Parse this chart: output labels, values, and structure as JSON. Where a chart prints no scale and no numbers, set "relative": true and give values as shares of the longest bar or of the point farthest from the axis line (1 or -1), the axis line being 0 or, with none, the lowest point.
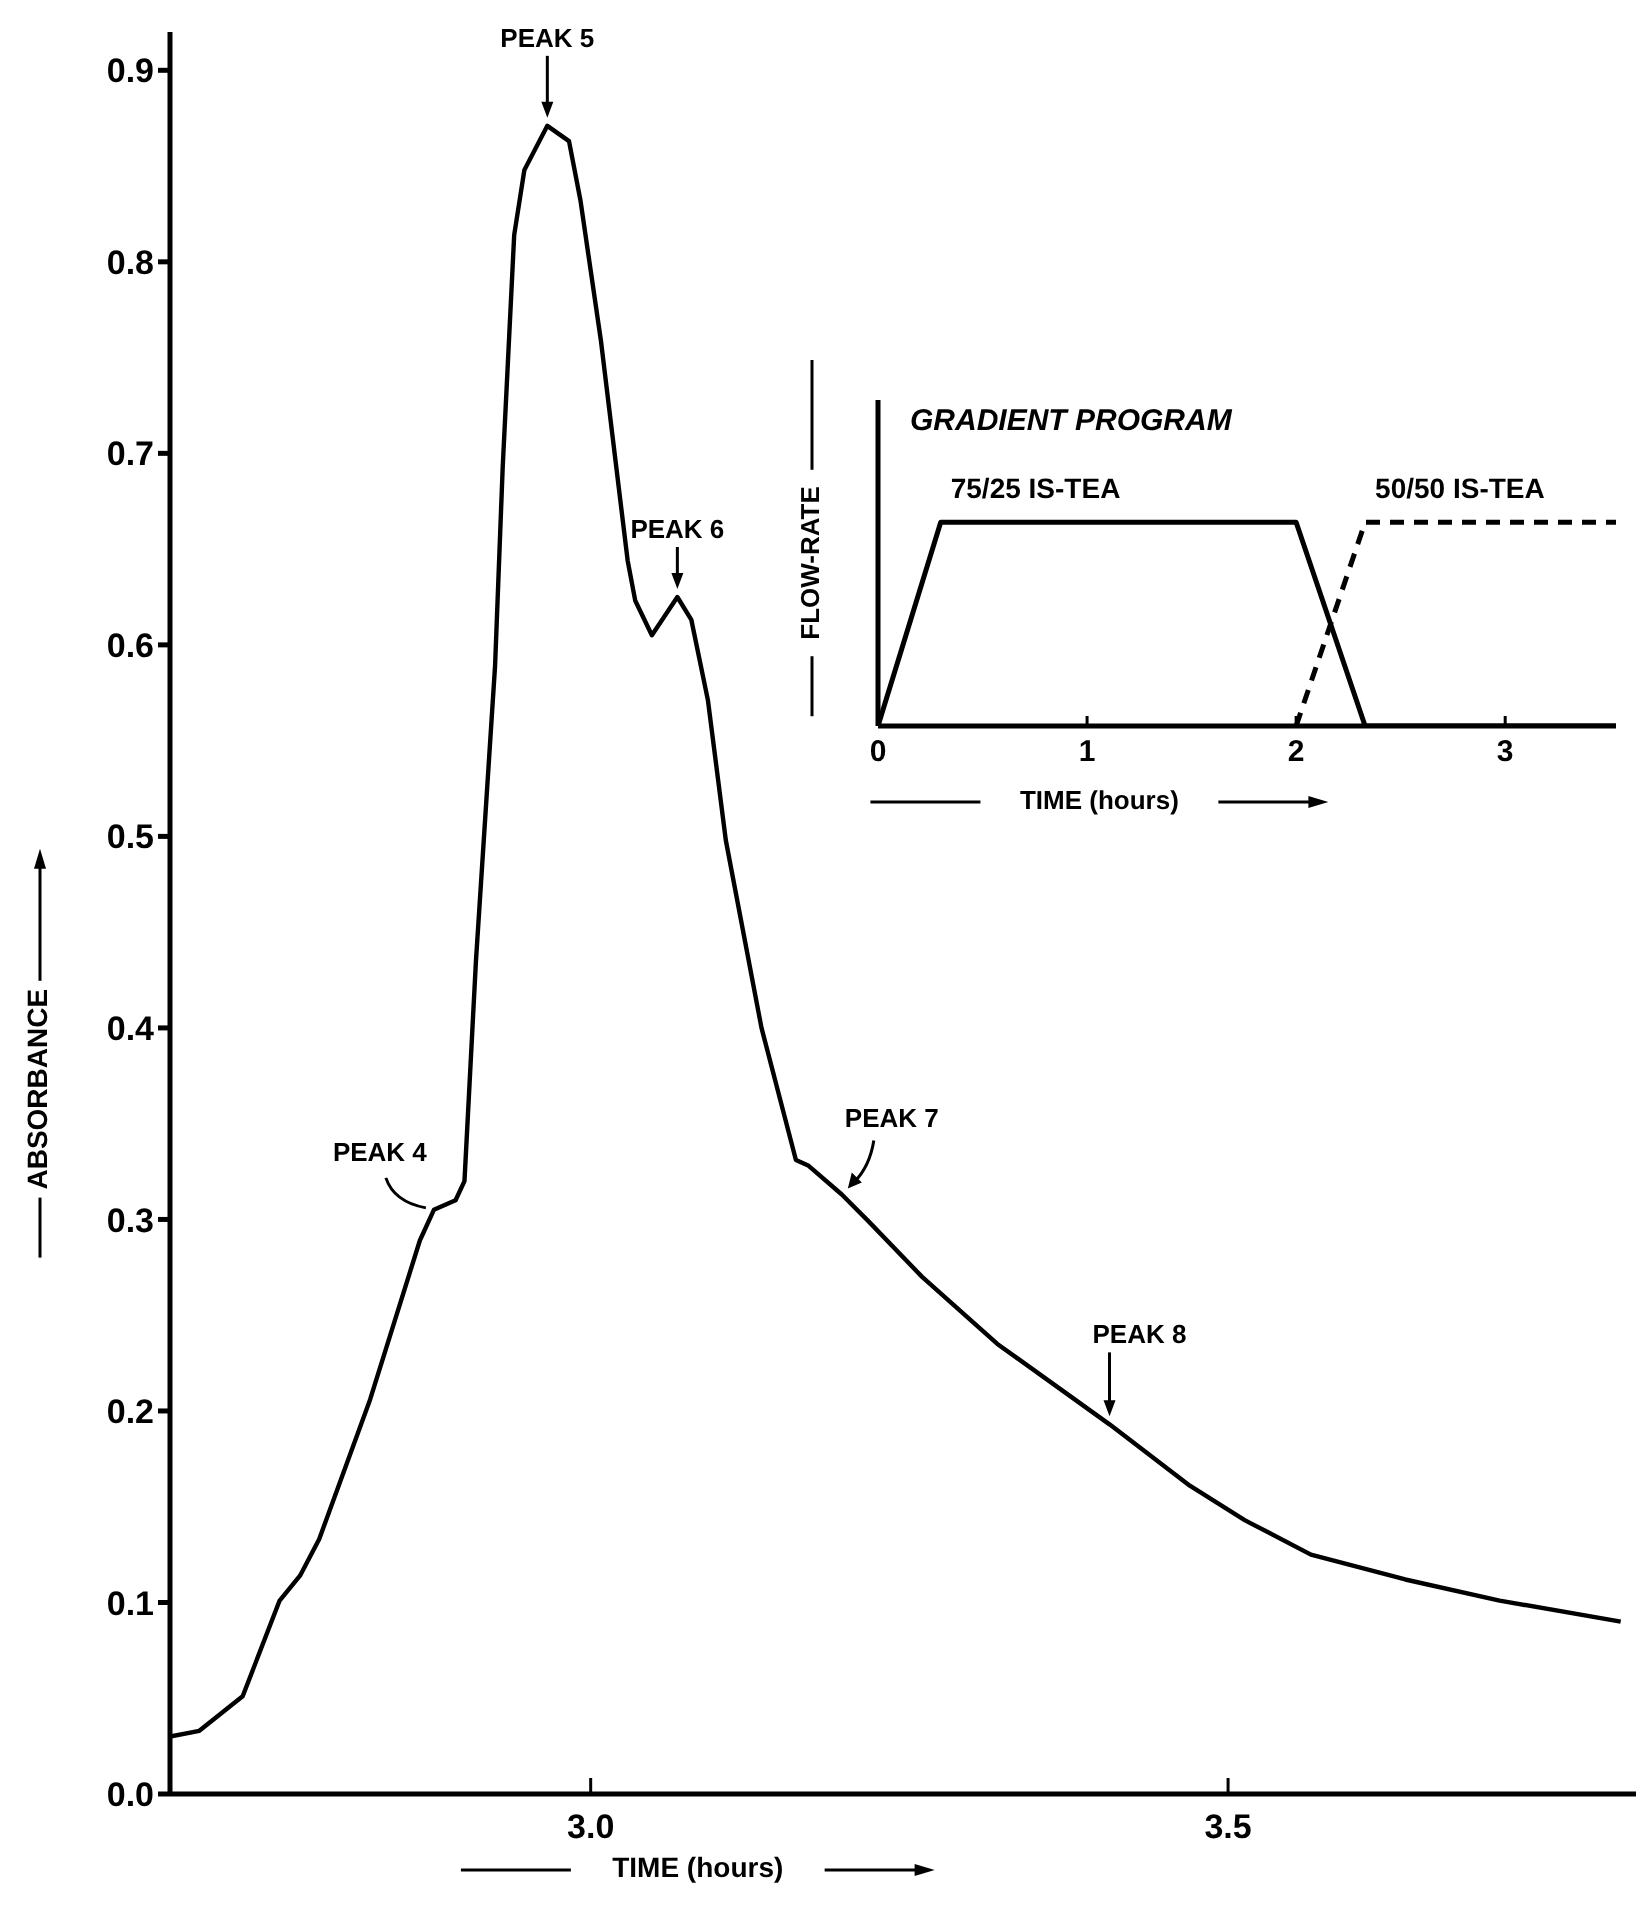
{
  "chart_data": [
    {
      "type": "line",
      "xlabel": "TIME (hours)",
      "ylabel": "ABSORBANCE",
      "xlim": [
        2.67,
        3.82
      ],
      "ylim": [
        0,
        0.92
      ],
      "xticks": [
        {
          "value": 3,
          "label": "3.0"
        },
        3.5
      ],
      "yticks": [
        {
          "value": 0,
          "label": "0.0"
        },
        0.1,
        0.2,
        0.3,
        0.4,
        0.5,
        0.6,
        0.7,
        0.8,
        0.9
      ],
      "series": [
        {
          "color": "#000000",
          "x": [
            2.67,
            2.693,
            2.727,
            2.756,
            2.772,
            2.787,
            2.827,
            2.866,
            2.877,
            2.894,
            2.901,
            2.91,
            2.925,
            2.931,
            2.94,
            2.948,
            2.966,
            2.983,
            2.992,
            3.008,
            3.029,
            3.035,
            3.048,
            3.068,
            3.079,
            3.092,
            3.106,
            3.134,
            3.161,
            3.171,
            3.197,
            3.218,
            3.26,
            3.319,
            3.407,
            3.47,
            3.513,
            3.565,
            3.639,
            3.713,
            3.808
          ],
          "values": [
            0.03,
            0.033,
            0.051,
            0.101,
            0.114,
            0.133,
            0.206,
            0.289,
            0.305,
            0.31,
            0.32,
            0.435,
            0.589,
            0.693,
            0.814,
            0.848,
            0.871,
            0.863,
            0.832,
            0.759,
            0.644,
            0.623,
            0.605,
            0.625,
            0.613,
            0.571,
            0.498,
            0.4,
            0.331,
            0.328,
            0.313,
            0.299,
            0.27,
            0.235,
            0.193,
            0.161,
            0.143,
            0.125,
            0.112,
            0.101,
            0.09
          ]
        }
      ],
      "annotations": [
        {
          "text": "PEAK 4",
          "x": 2.877,
          "y": 0.305
        },
        {
          "text": "PEAK 5",
          "x": 2.966,
          "y": 0.871
        },
        {
          "text": "PEAK 6",
          "x": 3.068,
          "y": 0.625
        },
        {
          "text": "PEAK 7",
          "x": 3.197,
          "y": 0.313
        },
        {
          "text": "PEAK 8",
          "x": 3.407,
          "y": 0.193
        }
      ]
    },
    {
      "type": "line",
      "title": "GRADIENT PROGRAM",
      "xlabel": "TIME (hours)",
      "ylabel": "FLOW-RATE",
      "xlim": [
        0,
        3.53
      ],
      "xticks": [
        0,
        1,
        2,
        3
      ],
      "relative": true,
      "series": [
        {
          "name": "75/25 IS-TEA",
          "color": "#000000",
          "line_style": "solid",
          "x": [
            0,
            0.3,
            2,
            2.33,
            3.53
          ],
          "values": [
            0,
            1,
            1,
            0,
            0
          ]
        },
        {
          "name": "50/50 IS-TEA",
          "color": "#000000",
          "line_style": "dashed",
          "x": [
            2,
            2.33,
            3.53
          ],
          "values": [
            0,
            1,
            1
          ]
        }
      ]
    }
  ]
}
